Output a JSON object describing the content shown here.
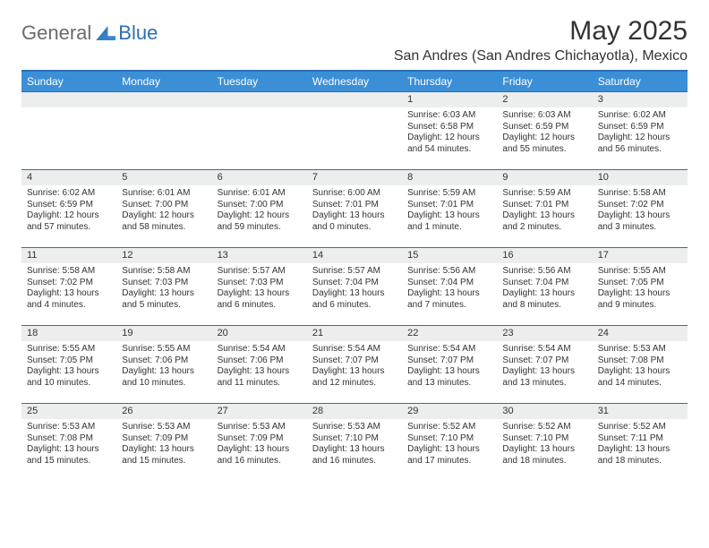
{
  "logo": {
    "general": "General",
    "blue": "Blue"
  },
  "title": "May 2025",
  "location": "San Andres (San Andres Chichayotla), Mexico",
  "colors": {
    "accent": "#2b6fb3",
    "header_bg": "#3b8fd6",
    "daynum_bg": "#eceded",
    "text": "#333333",
    "logo_gray": "#6b6b6b"
  },
  "dow": [
    "Sunday",
    "Monday",
    "Tuesday",
    "Wednesday",
    "Thursday",
    "Friday",
    "Saturday"
  ],
  "weeks": [
    [
      {
        "n": "",
        "sr": "",
        "ss": "",
        "dl1": "",
        "dl2": ""
      },
      {
        "n": "",
        "sr": "",
        "ss": "",
        "dl1": "",
        "dl2": ""
      },
      {
        "n": "",
        "sr": "",
        "ss": "",
        "dl1": "",
        "dl2": ""
      },
      {
        "n": "",
        "sr": "",
        "ss": "",
        "dl1": "",
        "dl2": ""
      },
      {
        "n": "1",
        "sr": "Sunrise: 6:03 AM",
        "ss": "Sunset: 6:58 PM",
        "dl1": "Daylight: 12 hours",
        "dl2": "and 54 minutes."
      },
      {
        "n": "2",
        "sr": "Sunrise: 6:03 AM",
        "ss": "Sunset: 6:59 PM",
        "dl1": "Daylight: 12 hours",
        "dl2": "and 55 minutes."
      },
      {
        "n": "3",
        "sr": "Sunrise: 6:02 AM",
        "ss": "Sunset: 6:59 PM",
        "dl1": "Daylight: 12 hours",
        "dl2": "and 56 minutes."
      }
    ],
    [
      {
        "n": "4",
        "sr": "Sunrise: 6:02 AM",
        "ss": "Sunset: 6:59 PM",
        "dl1": "Daylight: 12 hours",
        "dl2": "and 57 minutes."
      },
      {
        "n": "5",
        "sr": "Sunrise: 6:01 AM",
        "ss": "Sunset: 7:00 PM",
        "dl1": "Daylight: 12 hours",
        "dl2": "and 58 minutes."
      },
      {
        "n": "6",
        "sr": "Sunrise: 6:01 AM",
        "ss": "Sunset: 7:00 PM",
        "dl1": "Daylight: 12 hours",
        "dl2": "and 59 minutes."
      },
      {
        "n": "7",
        "sr": "Sunrise: 6:00 AM",
        "ss": "Sunset: 7:01 PM",
        "dl1": "Daylight: 13 hours",
        "dl2": "and 0 minutes."
      },
      {
        "n": "8",
        "sr": "Sunrise: 5:59 AM",
        "ss": "Sunset: 7:01 PM",
        "dl1": "Daylight: 13 hours",
        "dl2": "and 1 minute."
      },
      {
        "n": "9",
        "sr": "Sunrise: 5:59 AM",
        "ss": "Sunset: 7:01 PM",
        "dl1": "Daylight: 13 hours",
        "dl2": "and 2 minutes."
      },
      {
        "n": "10",
        "sr": "Sunrise: 5:58 AM",
        "ss": "Sunset: 7:02 PM",
        "dl1": "Daylight: 13 hours",
        "dl2": "and 3 minutes."
      }
    ],
    [
      {
        "n": "11",
        "sr": "Sunrise: 5:58 AM",
        "ss": "Sunset: 7:02 PM",
        "dl1": "Daylight: 13 hours",
        "dl2": "and 4 minutes."
      },
      {
        "n": "12",
        "sr": "Sunrise: 5:58 AM",
        "ss": "Sunset: 7:03 PM",
        "dl1": "Daylight: 13 hours",
        "dl2": "and 5 minutes."
      },
      {
        "n": "13",
        "sr": "Sunrise: 5:57 AM",
        "ss": "Sunset: 7:03 PM",
        "dl1": "Daylight: 13 hours",
        "dl2": "and 6 minutes."
      },
      {
        "n": "14",
        "sr": "Sunrise: 5:57 AM",
        "ss": "Sunset: 7:04 PM",
        "dl1": "Daylight: 13 hours",
        "dl2": "and 6 minutes."
      },
      {
        "n": "15",
        "sr": "Sunrise: 5:56 AM",
        "ss": "Sunset: 7:04 PM",
        "dl1": "Daylight: 13 hours",
        "dl2": "and 7 minutes."
      },
      {
        "n": "16",
        "sr": "Sunrise: 5:56 AM",
        "ss": "Sunset: 7:04 PM",
        "dl1": "Daylight: 13 hours",
        "dl2": "and 8 minutes."
      },
      {
        "n": "17",
        "sr": "Sunrise: 5:55 AM",
        "ss": "Sunset: 7:05 PM",
        "dl1": "Daylight: 13 hours",
        "dl2": "and 9 minutes."
      }
    ],
    [
      {
        "n": "18",
        "sr": "Sunrise: 5:55 AM",
        "ss": "Sunset: 7:05 PM",
        "dl1": "Daylight: 13 hours",
        "dl2": "and 10 minutes."
      },
      {
        "n": "19",
        "sr": "Sunrise: 5:55 AM",
        "ss": "Sunset: 7:06 PM",
        "dl1": "Daylight: 13 hours",
        "dl2": "and 10 minutes."
      },
      {
        "n": "20",
        "sr": "Sunrise: 5:54 AM",
        "ss": "Sunset: 7:06 PM",
        "dl1": "Daylight: 13 hours",
        "dl2": "and 11 minutes."
      },
      {
        "n": "21",
        "sr": "Sunrise: 5:54 AM",
        "ss": "Sunset: 7:07 PM",
        "dl1": "Daylight: 13 hours",
        "dl2": "and 12 minutes."
      },
      {
        "n": "22",
        "sr": "Sunrise: 5:54 AM",
        "ss": "Sunset: 7:07 PM",
        "dl1": "Daylight: 13 hours",
        "dl2": "and 13 minutes."
      },
      {
        "n": "23",
        "sr": "Sunrise: 5:54 AM",
        "ss": "Sunset: 7:07 PM",
        "dl1": "Daylight: 13 hours",
        "dl2": "and 13 minutes."
      },
      {
        "n": "24",
        "sr": "Sunrise: 5:53 AM",
        "ss": "Sunset: 7:08 PM",
        "dl1": "Daylight: 13 hours",
        "dl2": "and 14 minutes."
      }
    ],
    [
      {
        "n": "25",
        "sr": "Sunrise: 5:53 AM",
        "ss": "Sunset: 7:08 PM",
        "dl1": "Daylight: 13 hours",
        "dl2": "and 15 minutes."
      },
      {
        "n": "26",
        "sr": "Sunrise: 5:53 AM",
        "ss": "Sunset: 7:09 PM",
        "dl1": "Daylight: 13 hours",
        "dl2": "and 15 minutes."
      },
      {
        "n": "27",
        "sr": "Sunrise: 5:53 AM",
        "ss": "Sunset: 7:09 PM",
        "dl1": "Daylight: 13 hours",
        "dl2": "and 16 minutes."
      },
      {
        "n": "28",
        "sr": "Sunrise: 5:53 AM",
        "ss": "Sunset: 7:10 PM",
        "dl1": "Daylight: 13 hours",
        "dl2": "and 16 minutes."
      },
      {
        "n": "29",
        "sr": "Sunrise: 5:52 AM",
        "ss": "Sunset: 7:10 PM",
        "dl1": "Daylight: 13 hours",
        "dl2": "and 17 minutes."
      },
      {
        "n": "30",
        "sr": "Sunrise: 5:52 AM",
        "ss": "Sunset: 7:10 PM",
        "dl1": "Daylight: 13 hours",
        "dl2": "and 18 minutes."
      },
      {
        "n": "31",
        "sr": "Sunrise: 5:52 AM",
        "ss": "Sunset: 7:11 PM",
        "dl1": "Daylight: 13 hours",
        "dl2": "and 18 minutes."
      }
    ]
  ]
}
